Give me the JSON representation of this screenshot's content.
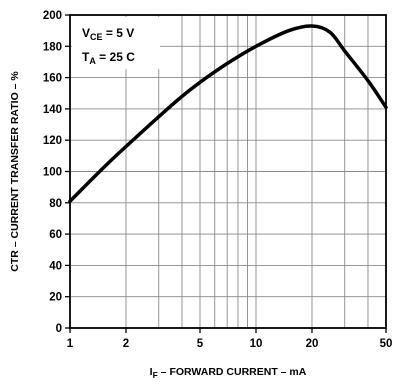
{
  "chart_data": {
    "type": "line",
    "xscale": "log",
    "xlim": [
      1,
      50
    ],
    "ylim": [
      0,
      200
    ],
    "xticks": [
      1,
      2,
      5,
      10,
      20,
      50
    ],
    "xtick_labels": [
      "1",
      "2",
      "5",
      "10",
      "20",
      "50"
    ],
    "xminor": [
      3,
      4,
      6,
      7,
      8,
      9,
      30,
      40
    ],
    "yticks": [
      0,
      20,
      40,
      60,
      80,
      100,
      120,
      140,
      160,
      180,
      200
    ],
    "ytick_labels": [
      "0",
      "20",
      "40",
      "60",
      "80",
      "100",
      "120",
      "140",
      "160",
      "180",
      "200"
    ],
    "grid": true,
    "xlabel": {
      "main": "I",
      "sub": "F",
      "rest": " – FORWARD CURRENT – mA"
    },
    "ylabel": "CTR – CURRENT TRANSFER RATIO – %",
    "annotations": [
      {
        "main": "V",
        "sub": "CE",
        "rest": " = 5 V"
      },
      {
        "main": "T",
        "sub": "A",
        "rest": " = 25 C"
      }
    ],
    "series": [
      {
        "x": [
          1,
          1.5,
          2,
          3,
          4,
          5,
          7,
          10,
          15,
          20,
          25,
          30,
          40,
          50
        ],
        "y": [
          81,
          102,
          116,
          135,
          148,
          157,
          169,
          180,
          190,
          193,
          189,
          177,
          158,
          141
        ]
      }
    ]
  }
}
